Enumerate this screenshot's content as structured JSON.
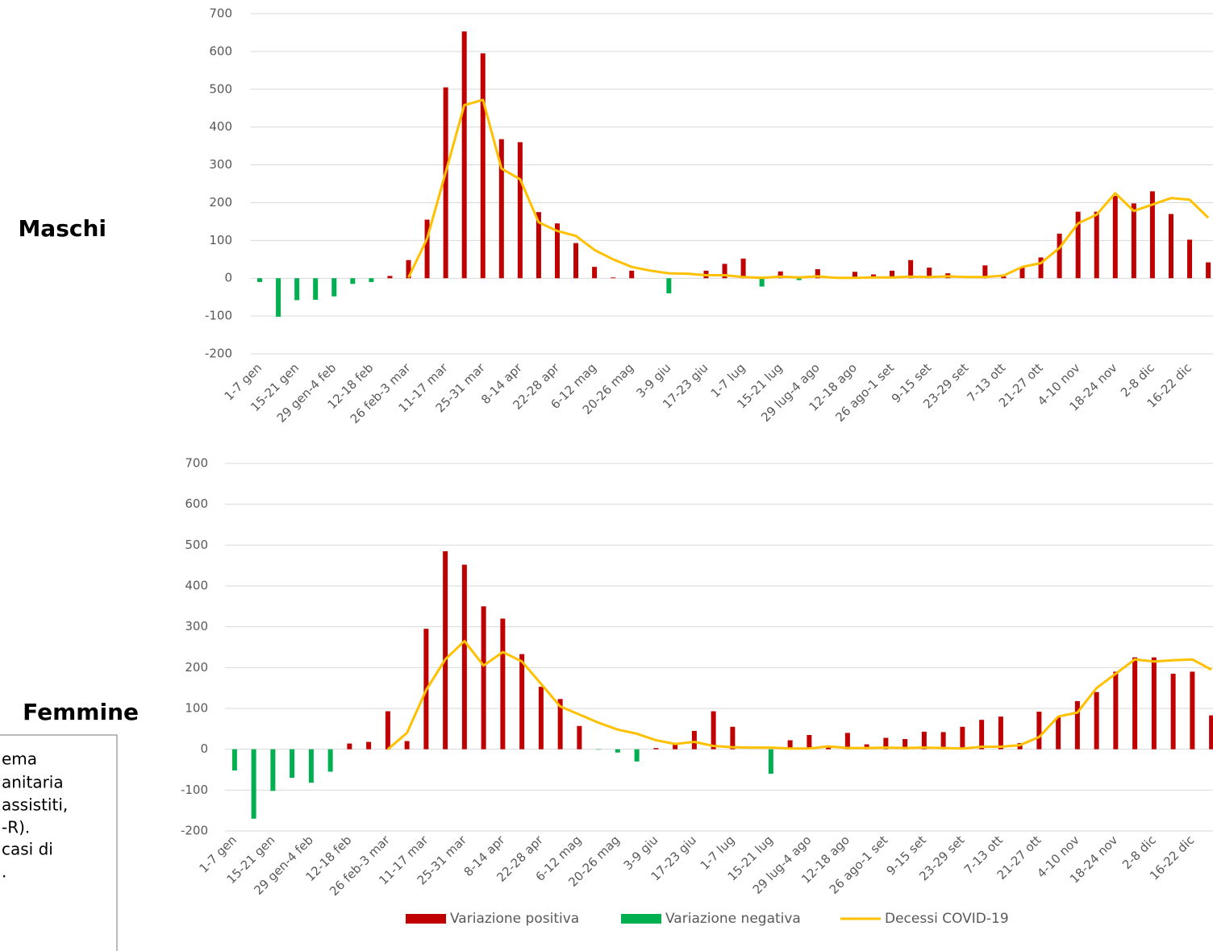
{
  "chart_data": [
    {
      "type": "bar-line",
      "title": "Maschi",
      "categories": [
        "1-7 gen",
        null,
        "15-21 gen",
        null,
        "29 gen-4 feb",
        null,
        "12-18 feb",
        null,
        "26 feb-3 mar",
        null,
        "11-17 mar",
        null,
        "25-31 mar",
        null,
        "8-14 apr",
        null,
        "22-28 apr",
        null,
        "6-12 mag",
        null,
        "20-26 mag",
        null,
        "3-9 giu",
        null,
        "17-23 giu",
        null,
        "1-7 lug",
        null,
        "15-21 lug",
        null,
        "29 lug-4 ago",
        null,
        "12-18 ago",
        null,
        "26 ago-1 set",
        null,
        "9-15 set",
        null,
        "23-29 set",
        null,
        "7-13 ott",
        null,
        "21-27 ott",
        null,
        "4-10 nov",
        null,
        "18-24 nov",
        null,
        "2-8 dic",
        null,
        "16-22 dic",
        null
      ],
      "series": [
        {
          "kind": "bar",
          "color": "#c00000",
          "values": [
            null,
            null,
            null,
            null,
            null,
            null,
            null,
            6,
            48,
            155,
            505,
            653,
            595,
            368,
            360,
            175,
            145,
            93,
            30,
            2,
            20,
            null,
            null,
            null,
            20,
            38,
            52,
            null,
            18,
            null,
            24,
            null,
            17,
            10,
            20,
            48,
            28,
            13,
            null,
            34,
            5,
            30,
            55,
            118,
            176,
            176,
            218,
            198,
            230,
            170,
            102,
            42
          ]
        },
        {
          "kind": "bar",
          "color": "#00b050",
          "values": [
            -10,
            -102,
            -58,
            -57,
            -48,
            -15,
            -10,
            null,
            null,
            null,
            null,
            null,
            null,
            null,
            null,
            null,
            null,
            null,
            null,
            null,
            null,
            null,
            -40,
            null,
            null,
            null,
            null,
            -22,
            null,
            -5,
            null,
            null,
            null,
            null,
            null,
            null,
            null,
            null,
            null,
            null,
            null,
            null,
            null,
            null,
            null,
            null,
            null,
            null,
            null,
            null,
            null,
            null
          ]
        },
        {
          "kind": "line",
          "color": "#ffc000",
          "values": [
            null,
            null,
            null,
            null,
            null,
            null,
            null,
            null,
            2,
            105,
            280,
            458,
            472,
            290,
            262,
            148,
            125,
            112,
            75,
            50,
            30,
            20,
            13,
            12,
            8,
            8,
            3,
            1,
            4,
            2,
            5,
            1,
            1,
            2,
            2,
            4,
            3,
            5,
            3,
            3,
            7,
            30,
            40,
            80,
            145,
            168,
            225,
            178,
            195,
            212,
            208,
            160
          ]
        }
      ],
      "ylim": [
        -200,
        700
      ],
      "yticks": [
        -200,
        -100,
        0,
        100,
        200,
        300,
        400,
        500,
        600,
        700
      ],
      "grid": true
    },
    {
      "type": "bar-line",
      "title": "Femmine",
      "categories": [
        "1-7 gen",
        null,
        "15-21 gen",
        null,
        "29 gen-4 feb",
        null,
        "12-18 feb",
        null,
        "26 feb-3 mar",
        null,
        "11-17 mar",
        null,
        "25-31 mar",
        null,
        "8-14 apr",
        null,
        "22-28 apr",
        null,
        "6-12 mag",
        null,
        "20-26 mag",
        null,
        "3-9 giu",
        null,
        "17-23 giu",
        null,
        "1-7 lug",
        null,
        "15-21 lug",
        null,
        "29 lug-4 ago",
        null,
        "12-18 ago",
        null,
        "26 ago-1 set",
        null,
        "9-15 set",
        null,
        "23-29 set",
        null,
        "7-13 ott",
        null,
        "21-27 ott",
        null,
        "4-10 nov",
        null,
        "18-24 nov",
        null,
        "2-8 dic",
        null,
        "16-22 dic",
        null
      ],
      "series": [
        {
          "name": "Variazione positiva",
          "kind": "bar",
          "color": "#c00000",
          "values": [
            null,
            null,
            null,
            null,
            null,
            null,
            14,
            18,
            93,
            20,
            295,
            485,
            452,
            350,
            320,
            233,
            153,
            123,
            57,
            null,
            null,
            null,
            3,
            15,
            45,
            93,
            55,
            null,
            null,
            22,
            35,
            5,
            40,
            12,
            28,
            25,
            43,
            42,
            55,
            72,
            80,
            15,
            92,
            78,
            118,
            140,
            190,
            225,
            225,
            185,
            190,
            83
          ]
        },
        {
          "name": "Variazione negativa",
          "kind": "bar",
          "color": "#00b050",
          "values": [
            -52,
            -170,
            -102,
            -70,
            -82,
            -55,
            null,
            null,
            null,
            null,
            null,
            null,
            null,
            null,
            null,
            null,
            null,
            null,
            null,
            -1,
            -8,
            -30,
            null,
            null,
            null,
            null,
            null,
            null,
            -60,
            null,
            null,
            null,
            null,
            null,
            null,
            null,
            null,
            null,
            null,
            null,
            null,
            null,
            null,
            null,
            null,
            null,
            null,
            null,
            null,
            null,
            null,
            null
          ]
        },
        {
          "name": "Decessi COVID-19",
          "kind": "line",
          "color": "#ffc000",
          "values": [
            null,
            null,
            null,
            null,
            null,
            null,
            null,
            null,
            0,
            40,
            145,
            220,
            265,
            205,
            238,
            215,
            160,
            105,
            85,
            65,
            48,
            38,
            22,
            13,
            18,
            8,
            5,
            4,
            4,
            2,
            2,
            7,
            3,
            3,
            4,
            3,
            4,
            3,
            2,
            6,
            6,
            10,
            30,
            80,
            90,
            150,
            185,
            220,
            215,
            218,
            220,
            195
          ]
        }
      ],
      "ylim": [
        -200,
        700
      ],
      "yticks": [
        -200,
        -100,
        0,
        100,
        200,
        300,
        400,
        500,
        600,
        700
      ],
      "grid": true
    }
  ],
  "note_lines": [
    "ema",
    "anitaria",
    "assistiti,",
    "-R).",
    "casi di",
    "."
  ]
}
